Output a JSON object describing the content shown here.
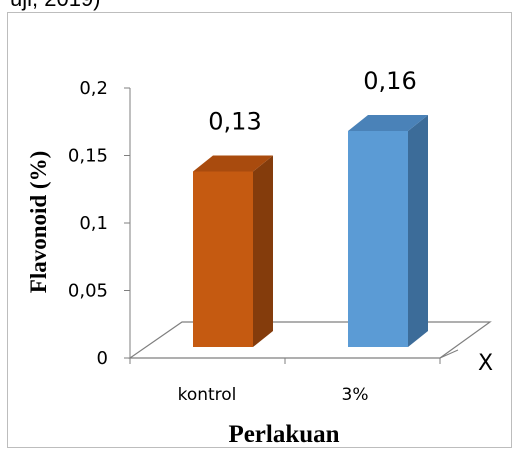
{
  "header_fragment": "uji, 2019)",
  "chart_data": {
    "type": "bar",
    "categories": [
      "kontrol",
      "3%"
    ],
    "values": [
      0.13,
      0.16
    ],
    "data_labels": [
      "0,13",
      "0,16"
    ],
    "xlabel": "Perlakuan",
    "ylabel": "Flavonoid (%)",
    "ylim": [
      0,
      0.2
    ],
    "yticks": [
      "0",
      "0,05",
      "0,1",
      "0,15",
      "0,2"
    ],
    "extra_axis_mark": "X",
    "grid": false,
    "legend": "none",
    "colors": {
      "kontrol": {
        "front": "#c55a11",
        "side": "#843c0c",
        "top": "#a94b0e"
      },
      "3%": {
        "front": "#5b9bd5",
        "side": "#3c6c99",
        "top": "#4a82b8"
      }
    }
  }
}
